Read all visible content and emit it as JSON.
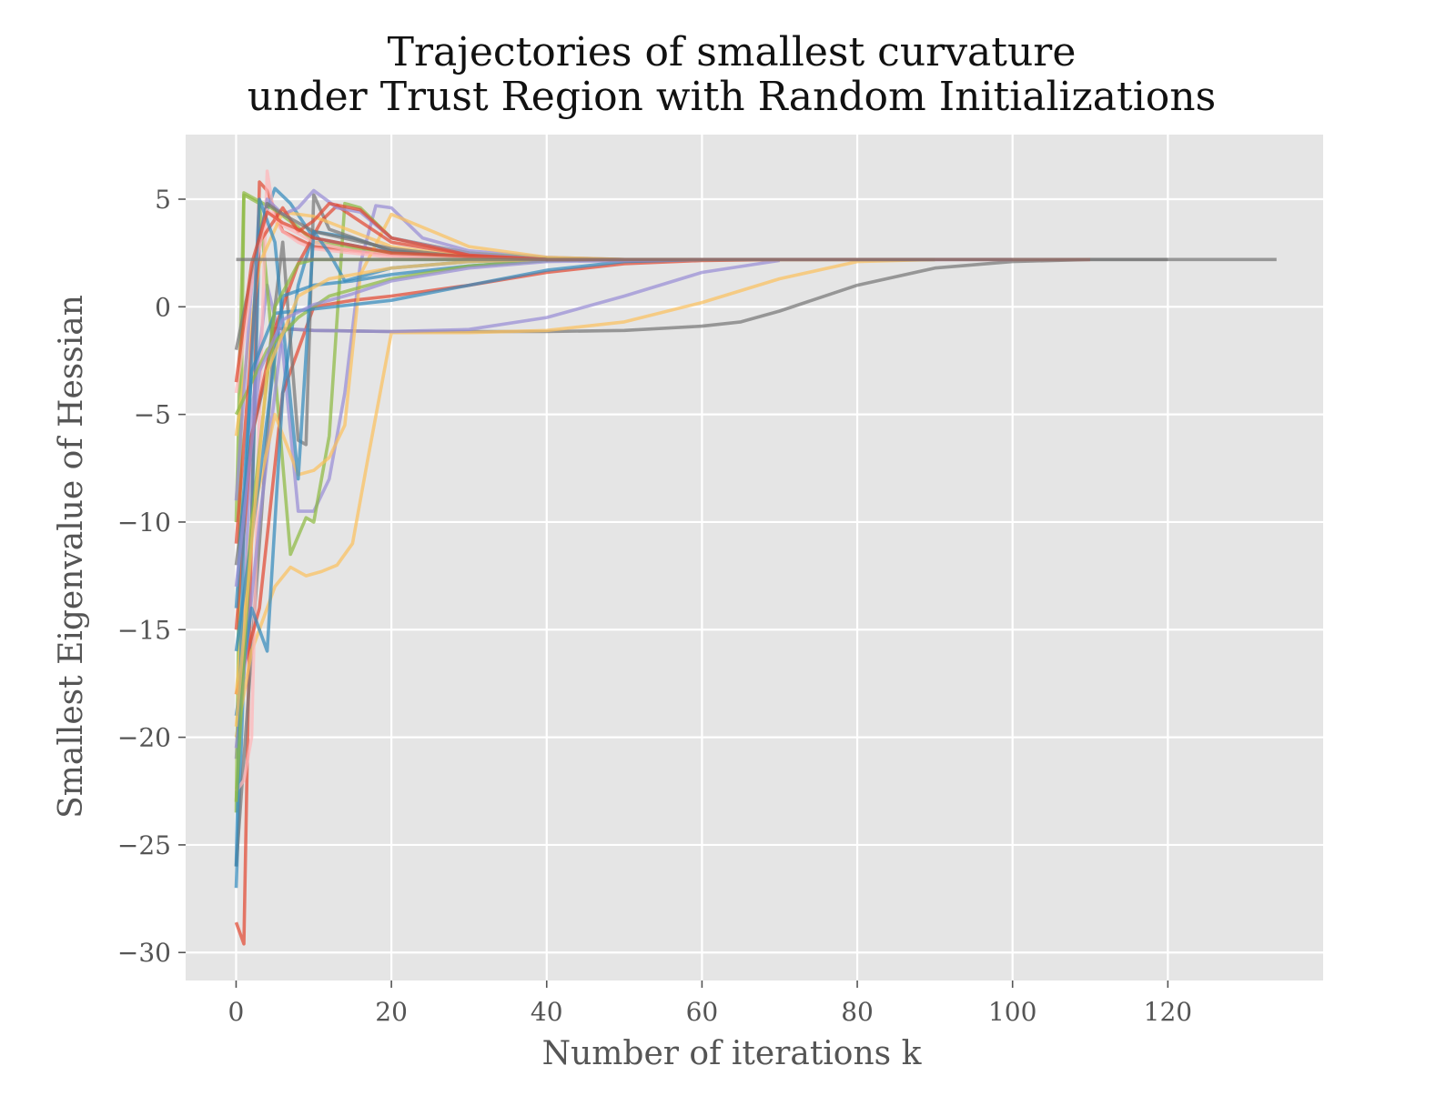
{
  "chart_data": {
    "type": "line",
    "title": "Trajectories of smallest curvature",
    "subtitle": "under Trust Region with Random Initializations",
    "xlabel": "Number of iterations k",
    "ylabel": "Smallest Eigenvalue of Hessian",
    "xlim": [
      -6.5,
      140
    ],
    "ylim": [
      -31.3,
      8
    ],
    "xticks": [
      0,
      20,
      40,
      60,
      80,
      100,
      120
    ],
    "xtick_labels": [
      "0",
      "20",
      "40",
      "60",
      "80",
      "100",
      "120"
    ],
    "yticks": [
      5,
      0,
      -5,
      -10,
      -15,
      -20,
      -25,
      -30
    ],
    "ytick_labels": [
      "5",
      "0",
      "−5",
      "−10",
      "−15",
      "−20",
      "−25",
      "−30"
    ],
    "grid": true,
    "background": "#e5e5e5",
    "series": [
      {
        "color": "#e24a33",
        "x": [
          0,
          1,
          2,
          3,
          4,
          6,
          10,
          20,
          30,
          40,
          50,
          60
        ],
        "y": [
          -28.6,
          -29.6,
          -10,
          5.8,
          5.4,
          3.5,
          2.8,
          2.4,
          2.25,
          2.2,
          2.2,
          2.2
        ]
      },
      {
        "color": "#348abd",
        "x": [
          0,
          1,
          2,
          3,
          5,
          7,
          10,
          20,
          30,
          40,
          50,
          60
        ],
        "y": [
          -27,
          -17,
          -10,
          3.5,
          5.5,
          4.8,
          3.2,
          2.5,
          2.25,
          2.2,
          2.2,
          2.2
        ]
      },
      {
        "color": "#988ed5",
        "x": [
          0,
          1,
          2,
          4,
          6,
          8,
          10,
          12,
          14,
          16,
          18,
          20,
          24,
          30,
          40,
          50,
          70,
          90
        ],
        "y": [
          -21,
          -15,
          -5,
          1,
          -2,
          -9.5,
          -9.5,
          -8,
          -4,
          2,
          4.7,
          4.6,
          3.2,
          2.6,
          2.3,
          2.2,
          2.2,
          2.2
        ]
      },
      {
        "color": "#777777",
        "x": [
          0,
          5,
          10,
          20,
          30,
          40,
          50,
          60,
          65,
          70,
          80,
          90,
          100,
          110,
          120,
          134
        ],
        "y": [
          -26,
          -1,
          -1.1,
          -1.15,
          -1.15,
          -1.15,
          -1.1,
          -0.9,
          -0.7,
          -0.2,
          1.0,
          1.8,
          2.1,
          2.2,
          2.2,
          2.2
        ]
      },
      {
        "color": "#fbc15e",
        "x": [
          0,
          2,
          5,
          7,
          9,
          11,
          13,
          15,
          17,
          20,
          30,
          40,
          50,
          60,
          70,
          80,
          90
        ],
        "y": [
          -20,
          -16,
          -13,
          -12.1,
          -12.5,
          -12.3,
          -12,
          -11,
          -7,
          -1.2,
          -1.2,
          -1.1,
          -0.7,
          0.2,
          1.3,
          2.1,
          2.2
        ]
      },
      {
        "color": "#8eba42",
        "x": [
          0,
          1,
          3,
          5,
          7,
          9,
          10,
          12,
          14,
          16,
          20,
          30,
          40,
          50,
          60,
          80,
          90
        ],
        "y": [
          -23.5,
          5.2,
          4.8,
          -3,
          -11.5,
          -9.8,
          -10,
          -6,
          4.8,
          4.6,
          3.2,
          2.5,
          2.25,
          2.2,
          2.2,
          2.2,
          2.2
        ]
      },
      {
        "color": "#ffb5b8",
        "x": [
          0,
          1,
          2,
          3,
          4,
          5,
          6,
          8,
          10,
          20,
          30,
          40
        ],
        "y": [
          -22.5,
          -22,
          -20,
          -5,
          6.3,
          4,
          3.5,
          3,
          2.7,
          2.3,
          2.2,
          2.2
        ]
      },
      {
        "color": "#e24a33",
        "x": [
          0,
          3,
          6,
          10,
          15,
          20,
          30,
          40,
          50,
          60,
          70
        ],
        "y": [
          -18,
          -14,
          -4,
          0,
          0.3,
          0.5,
          1.0,
          1.6,
          2.0,
          2.15,
          2.2
        ]
      },
      {
        "color": "#988ed5",
        "x": [
          0,
          3,
          6,
          10,
          20,
          30,
          40,
          50,
          60,
          70
        ],
        "y": [
          -20.5,
          -10,
          -1,
          -1.1,
          -1.15,
          -1.05,
          -0.5,
          0.5,
          1.6,
          2.15
        ]
      },
      {
        "color": "#fbc15e",
        "x": [
          0,
          2,
          5,
          8,
          10,
          12,
          14,
          16,
          20,
          30,
          40,
          50
        ],
        "y": [
          -18,
          -10,
          -5,
          -7.8,
          -7.6,
          -7,
          -5.5,
          1.5,
          4.3,
          2.8,
          2.3,
          2.2
        ]
      },
      {
        "color": "#348abd",
        "x": [
          0,
          2,
          4,
          6,
          8,
          10,
          15,
          20,
          30,
          40,
          50
        ],
        "y": [
          -19,
          -14,
          -16,
          -4,
          1,
          3.5,
          3.2,
          2.6,
          2.3,
          2.2,
          2.2
        ]
      },
      {
        "color": "#8eba42",
        "x": [
          0,
          1,
          3,
          5,
          8,
          10,
          20,
          30,
          40,
          50,
          60
        ],
        "y": [
          -10,
          5.3,
          4.9,
          4.5,
          3.7,
          3.0,
          2.5,
          2.3,
          2.2,
          2.2,
          2.2
        ]
      },
      {
        "color": "#777777",
        "x": [
          0,
          2,
          4,
          6,
          8,
          9,
          10,
          12,
          20,
          30,
          40,
          60
        ],
        "y": [
          -12,
          -6,
          -3,
          3,
          -6.2,
          -6.4,
          5.2,
          3.6,
          2.6,
          2.3,
          2.2,
          2.2
        ]
      },
      {
        "color": "#e24a33",
        "x": [
          0,
          2,
          5,
          8,
          11,
          13,
          15,
          20,
          30,
          40,
          50
        ],
        "y": [
          -15,
          -6,
          -1,
          2,
          4,
          4.7,
          4.2,
          3.0,
          2.4,
          2.2,
          2.2
        ]
      },
      {
        "color": "#348abd",
        "x": [
          0,
          3,
          6,
          10,
          15,
          20,
          25,
          30,
          40,
          50
        ],
        "y": [
          -16,
          -8,
          0.5,
          1.0,
          1.2,
          1.5,
          1.7,
          1.9,
          2.15,
          2.2
        ]
      },
      {
        "color": "#fbc15e",
        "x": [
          0,
          3,
          6,
          10,
          20,
          30,
          40
        ],
        "y": [
          -6,
          2,
          4.4,
          4.2,
          2.8,
          2.3,
          2.2
        ]
      },
      {
        "color": "#988ed5",
        "x": [
          0,
          2,
          4,
          6,
          8,
          10,
          13,
          16,
          20,
          30,
          40,
          50
        ],
        "y": [
          -9,
          1,
          5,
          4.3,
          4.6,
          5.4,
          4.6,
          4.4,
          3.2,
          2.5,
          2.2,
          2.2
        ]
      },
      {
        "color": "#8eba42",
        "x": [
          0,
          4,
          8,
          12,
          20,
          30,
          40,
          50
        ],
        "y": [
          -5,
          -2,
          -0.5,
          0.5,
          1.3,
          1.9,
          2.15,
          2.2
        ]
      },
      {
        "color": "#e24a33",
        "x": [
          0,
          3,
          6,
          8,
          10,
          12,
          16,
          20,
          30,
          40,
          50
        ],
        "y": [
          -11,
          3,
          4.6,
          3.5,
          4.0,
          4.8,
          4.5,
          3.2,
          2.4,
          2.2,
          2.2
        ]
      },
      {
        "color": "#348abd",
        "x": [
          0,
          2,
          5,
          10,
          20,
          30,
          40,
          50,
          60
        ],
        "y": [
          -14,
          -3,
          -0.3,
          -0.1,
          0.3,
          1.0,
          1.7,
          2.1,
          2.2
        ]
      },
      {
        "color": "#777777",
        "x": [
          0,
          2,
          4,
          6,
          10,
          20,
          30,
          40,
          50
        ],
        "y": [
          -2,
          1.5,
          4.8,
          4.3,
          3.5,
          2.7,
          2.3,
          2.2,
          2.2
        ]
      },
      {
        "color": "#ffb5b8",
        "x": [
          0,
          2,
          4,
          6,
          10,
          15,
          20,
          30,
          40
        ],
        "y": [
          -4,
          1,
          4.5,
          3.8,
          3.0,
          2.6,
          2.4,
          2.25,
          2.2
        ]
      },
      {
        "color": "#348abd",
        "x": [
          0,
          1,
          3,
          5,
          8,
          10,
          12,
          14,
          20,
          30,
          40,
          50,
          60
        ],
        "y": [
          -26,
          -10,
          5,
          3,
          -8,
          3.5,
          2.5,
          1.2,
          1.8,
          2.1,
          2.2,
          2.2,
          2.2
        ]
      },
      {
        "color": "#8eba42",
        "x": [
          0,
          2,
          5,
          8,
          10,
          20,
          30,
          40,
          60,
          80,
          90
        ],
        "y": [
          -23,
          -10,
          0,
          2,
          2.2,
          2.2,
          2.2,
          2.2,
          2.2,
          2.2,
          2.2
        ]
      },
      {
        "color": "#fbc15e",
        "x": [
          0,
          2,
          4,
          8,
          12,
          20,
          30,
          40,
          60,
          80
        ],
        "y": [
          -19.5,
          -11,
          -3,
          0.5,
          1.3,
          1.8,
          2.1,
          2.2,
          2.2,
          2.2
        ]
      },
      {
        "color": "#988ed5",
        "x": [
          0,
          3,
          6,
          10,
          15,
          20,
          30,
          40,
          60,
          80,
          100
        ],
        "y": [
          -13,
          -3,
          -0.6,
          0.1,
          0.6,
          1.2,
          1.8,
          2.1,
          2.2,
          2.2,
          2.2
        ]
      },
      {
        "color": "#e24a33",
        "x": [
          0,
          2,
          4,
          6,
          8,
          10,
          20,
          40,
          60,
          80,
          100,
          110
        ],
        "y": [
          -3.5,
          2,
          4.4,
          3.9,
          3.6,
          3.2,
          2.5,
          2.2,
          2.2,
          2.2,
          2.2,
          2.2
        ]
      },
      {
        "color": "#777777",
        "x": [
          0,
          40,
          60,
          80,
          100,
          120
        ],
        "y": [
          2.2,
          2.2,
          2.2,
          2.2,
          2.2,
          2.2
        ]
      }
    ]
  }
}
